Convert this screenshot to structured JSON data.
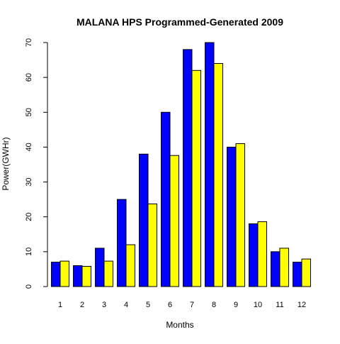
{
  "chart_data": {
    "type": "bar",
    "title": "MALANA  HPS Programmed-Generated  2009",
    "xlabel": "Months",
    "ylabel": "Power(GWHr)",
    "categories": [
      "1",
      "2",
      "3",
      "4",
      "5",
      "6",
      "7",
      "8",
      "9",
      "10",
      "11",
      "12"
    ],
    "series": [
      {
        "color": "#0000ff",
        "values": [
          7,
          6,
          11,
          25,
          38,
          50,
          68,
          70,
          40,
          18,
          10,
          7
        ]
      },
      {
        "color": "#ffff00",
        "values": [
          7.3,
          5.8,
          7.3,
          12,
          23.7,
          37.6,
          62,
          64,
          41,
          18.6,
          11,
          7.9
        ]
      }
    ],
    "ylim": [
      0,
      70
    ],
    "yticks": [
      "0",
      "10",
      "20",
      "30",
      "40",
      "50",
      "60",
      "70"
    ],
    "grid": false,
    "legend": "none"
  }
}
